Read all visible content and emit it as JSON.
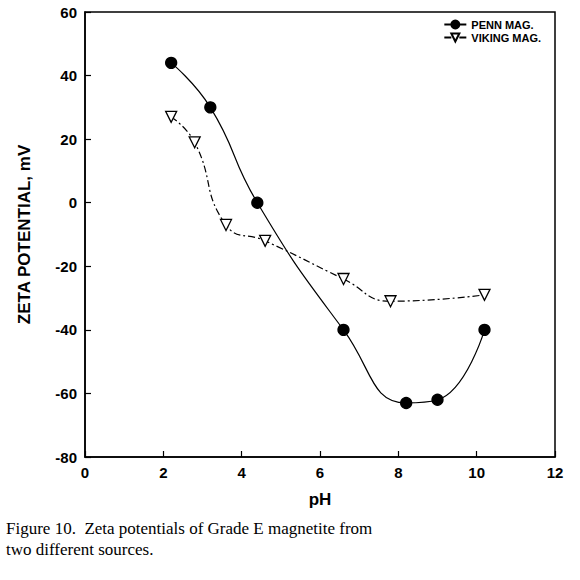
{
  "chart_data": {
    "type": "line",
    "caption": "Figure 10.  Zeta potentials of Grade E magnetite from\ntwo different sources.",
    "x_label": "pH",
    "y_label": "ZETA POTENTIAL, mV",
    "xlim": [
      0,
      12
    ],
    "xticks": [
      0,
      2,
      4,
      6,
      8,
      10,
      12
    ],
    "ylim": [
      -80,
      60
    ],
    "yticks": [
      -80,
      -60,
      -40,
      -20,
      0,
      20,
      40,
      60
    ],
    "grid": false,
    "legend": "upper right",
    "series": [
      {
        "name": "PENN MAG.",
        "color": "#000000",
        "marker": "filled-circle",
        "line_style": "solid",
        "x": [
          2.2,
          3.2,
          4.4,
          6.6,
          8.2,
          9.0,
          10.2
        ],
        "values": [
          44,
          30,
          0,
          -40,
          -63,
          -62,
          -40
        ]
      },
      {
        "name": "VIKING MAG.",
        "color": "#000000",
        "marker": "open-triangle-down",
        "line_style": "dashdot",
        "x": [
          2.2,
          2.8,
          3.6,
          4.6,
          6.6,
          7.8,
          10.2
        ],
        "values": [
          27,
          19,
          -7,
          -12,
          -24,
          -31,
          -29
        ]
      }
    ]
  }
}
